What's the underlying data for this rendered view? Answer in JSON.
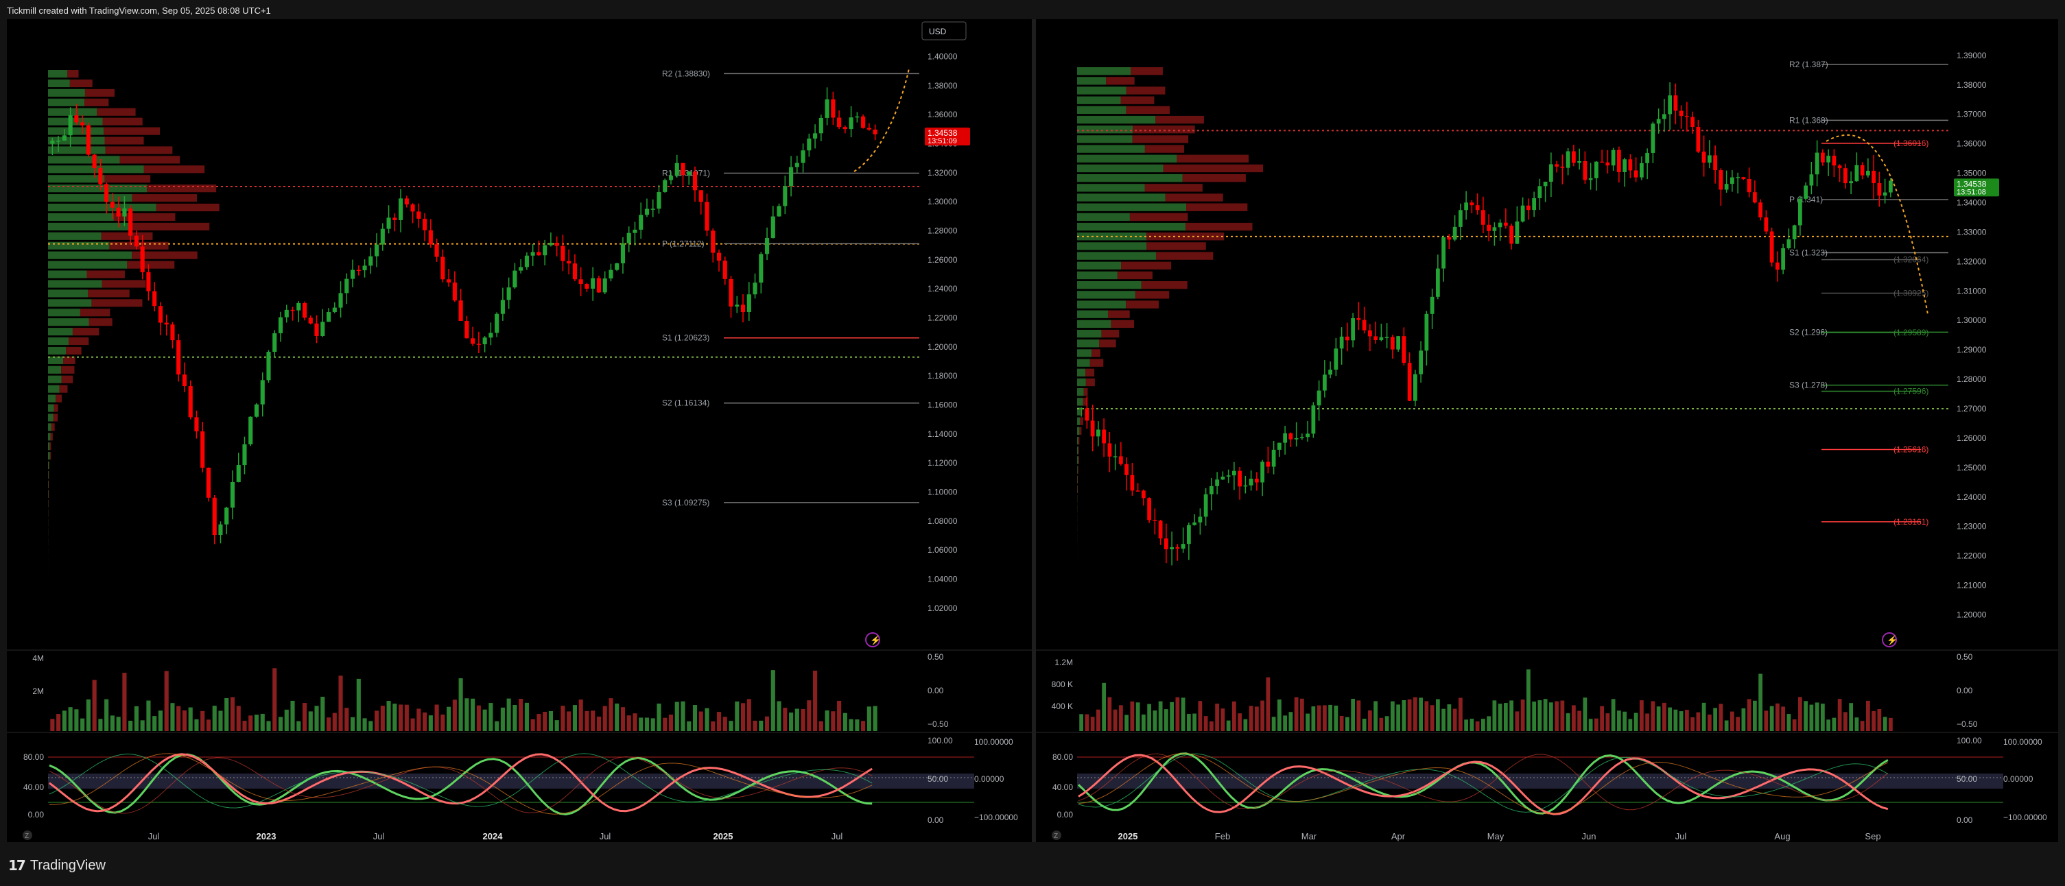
{
  "header": {
    "caption": "Tickmill created with TradingView.com, Sep 05, 2025 08:08 UTC+1"
  },
  "footer": {
    "brand": "TradingView",
    "logo": "17"
  },
  "colors": {
    "up": "#26a69a",
    "down": "#ff0000",
    "bg": "#000000",
    "vpUp": "#2e7d32",
    "vpDown": "#7a1414"
  },
  "chart_data": [
    {
      "type": "candlestick",
      "panel": "left",
      "currency_label": "USD",
      "last_price": "1.34538",
      "countdown": "13:51:09",
      "x_ticks": [
        "Jul",
        "2023",
        "Jul",
        "2024",
        "Jul",
        "2025",
        "Jul"
      ],
      "y_ticks": [
        "1.40000",
        "1.38000",
        "1.36000",
        "1.34000",
        "1.32000",
        "1.30000",
        "1.28000",
        "1.26000",
        "1.24000",
        "1.22000",
        "1.20000",
        "1.18000",
        "1.16000",
        "1.14000",
        "1.12000",
        "1.10000",
        "1.08000",
        "1.06000",
        "1.04000",
        "1.02000"
      ],
      "ylim": [
        1.01,
        1.405
      ],
      "levels": [
        {
          "label": "R2 (1.38830)",
          "value": 1.3883
        },
        {
          "label": "R1 (1.31971)",
          "value": 1.31971
        },
        {
          "label": "P (1.27112)",
          "value": 1.27112
        },
        {
          "label": "S1 (1.20623)",
          "value": 1.20623
        },
        {
          "label": "S2 (1.16134)",
          "value": 1.16134
        },
        {
          "label": "S3 (1.09275)",
          "value": 1.09275
        }
      ],
      "path": [
        [
          0,
          1.34
        ],
        [
          4,
          1.36
        ],
        [
          8,
          1.31
        ],
        [
          12,
          1.29
        ],
        [
          16,
          1.24
        ],
        [
          20,
          1.2
        ],
        [
          24,
          1.14
        ],
        [
          27,
          1.07
        ],
        [
          29,
          1.09
        ],
        [
          32,
          1.13
        ],
        [
          36,
          1.2
        ],
        [
          40,
          1.23
        ],
        [
          44,
          1.21
        ],
        [
          48,
          1.24
        ],
        [
          53,
          1.26
        ],
        [
          58,
          1.3
        ],
        [
          62,
          1.28
        ],
        [
          66,
          1.24
        ],
        [
          70,
          1.2
        ],
        [
          74,
          1.22
        ],
        [
          78,
          1.26
        ],
        [
          83,
          1.27
        ],
        [
          87,
          1.25
        ],
        [
          91,
          1.24
        ],
        [
          95,
          1.27
        ],
        [
          100,
          1.3
        ],
        [
          104,
          1.33
        ],
        [
          107,
          1.31
        ],
        [
          110,
          1.27
        ],
        [
          113,
          1.23
        ],
        [
          115,
          1.22
        ],
        [
          118,
          1.26
        ],
        [
          121,
          1.3
        ],
        [
          124,
          1.33
        ],
        [
          127,
          1.35
        ],
        [
          129,
          1.37
        ],
        [
          131,
          1.35
        ],
        [
          134,
          1.36
        ],
        [
          137,
          1.345
        ]
      ],
      "volume": {
        "y_ticks": [
          "4M",
          "2M"
        ],
        "axis": [
          "0.50",
          "0.00",
          "−0.50"
        ]
      },
      "oscillator": {
        "y_ticks": [
          "80.00",
          "40.00",
          "0.00"
        ],
        "axis": [
          "100.00",
          "50.00",
          "0.00"
        ],
        "axis2": [
          "100.00000",
          "0.00000",
          "−100.00000"
        ]
      }
    },
    {
      "type": "candlestick",
      "panel": "right",
      "last_price": "1.34538",
      "countdown": "13:51:08",
      "x_ticks": [
        "2025",
        "Feb",
        "Mar",
        "Apr",
        "May",
        "Jun",
        "Jul",
        "Aug",
        "Sep"
      ],
      "y_ticks": [
        "1.39000",
        "1.38000",
        "1.37000",
        "1.36000",
        "1.35000",
        "1.34000",
        "1.33000",
        "1.32000",
        "1.31000",
        "1.30000",
        "1.29000",
        "1.28000",
        "1.27000",
        "1.26000",
        "1.25000",
        "1.24000",
        "1.23000",
        "1.22000",
        "1.21000",
        "1.20000"
      ],
      "ylim": [
        1.195,
        1.393
      ],
      "levels": [
        {
          "label": "R2 (1.387)",
          "value": 1.387
        },
        {
          "label": "R1 (1.368)",
          "value": 1.368
        },
        {
          "label": "P (1.341)",
          "value": 1.341
        },
        {
          "label": "S1 (1.323)",
          "value": 1.323
        },
        {
          "label": "S2 (1.296)",
          "value": 1.296
        },
        {
          "label": "S3 (1.278)",
          "value": 1.278
        }
      ],
      "price_labels": [
        {
          "label": "(1.36016)",
          "value": 1.36016
        },
        {
          "label": "(1.32064)",
          "value": 1.32064
        },
        {
          "label": "(1.30925)",
          "value": 1.30925
        },
        {
          "label": "(1.29589)",
          "value": 1.29589
        },
        {
          "label": "(1.27596)",
          "value": 1.27596
        },
        {
          "label": "(1.25616)",
          "value": 1.25616
        },
        {
          "label": "(1.23161)",
          "value": 1.23161
        }
      ],
      "path": [
        [
          0,
          1.27
        ],
        [
          5,
          1.255
        ],
        [
          10,
          1.242
        ],
        [
          14,
          1.228
        ],
        [
          17,
          1.22
        ],
        [
          20,
          1.232
        ],
        [
          25,
          1.248
        ],
        [
          30,
          1.245
        ],
        [
          35,
          1.258
        ],
        [
          40,
          1.262
        ],
        [
          44,
          1.285
        ],
        [
          48,
          1.3
        ],
        [
          52,
          1.292
        ],
        [
          56,
          1.294
        ],
        [
          58,
          1.272
        ],
        [
          61,
          1.3
        ],
        [
          64,
          1.325
        ],
        [
          68,
          1.338
        ],
        [
          72,
          1.332
        ],
        [
          76,
          1.328
        ],
        [
          80,
          1.345
        ],
        [
          85,
          1.355
        ],
        [
          90,
          1.35
        ],
        [
          94,
          1.355
        ],
        [
          98,
          1.35
        ],
        [
          102,
          1.368
        ],
        [
          104,
          1.378
        ],
        [
          107,
          1.366
        ],
        [
          110,
          1.357
        ],
        [
          114,
          1.343
        ],
        [
          117,
          1.35
        ],
        [
          120,
          1.333
        ],
        [
          123,
          1.318
        ],
        [
          126,
          1.335
        ],
        [
          129,
          1.352
        ],
        [
          132,
          1.358
        ],
        [
          135,
          1.348
        ],
        [
          138,
          1.352
        ],
        [
          141,
          1.34
        ],
        [
          143,
          1.345
        ]
      ],
      "volume": {
        "y_ticks": [
          "1.2M",
          "800 K",
          "400 K"
        ],
        "axis": [
          "0.50",
          "0.00",
          "−0.50"
        ]
      },
      "oscillator": {
        "y_ticks": [
          "80.00",
          "40.00",
          "0.00"
        ],
        "axis": [
          "100.00",
          "50.00",
          "0.00"
        ],
        "axis2": [
          "100.00000",
          "0.00000",
          "−100.00000"
        ]
      }
    }
  ]
}
